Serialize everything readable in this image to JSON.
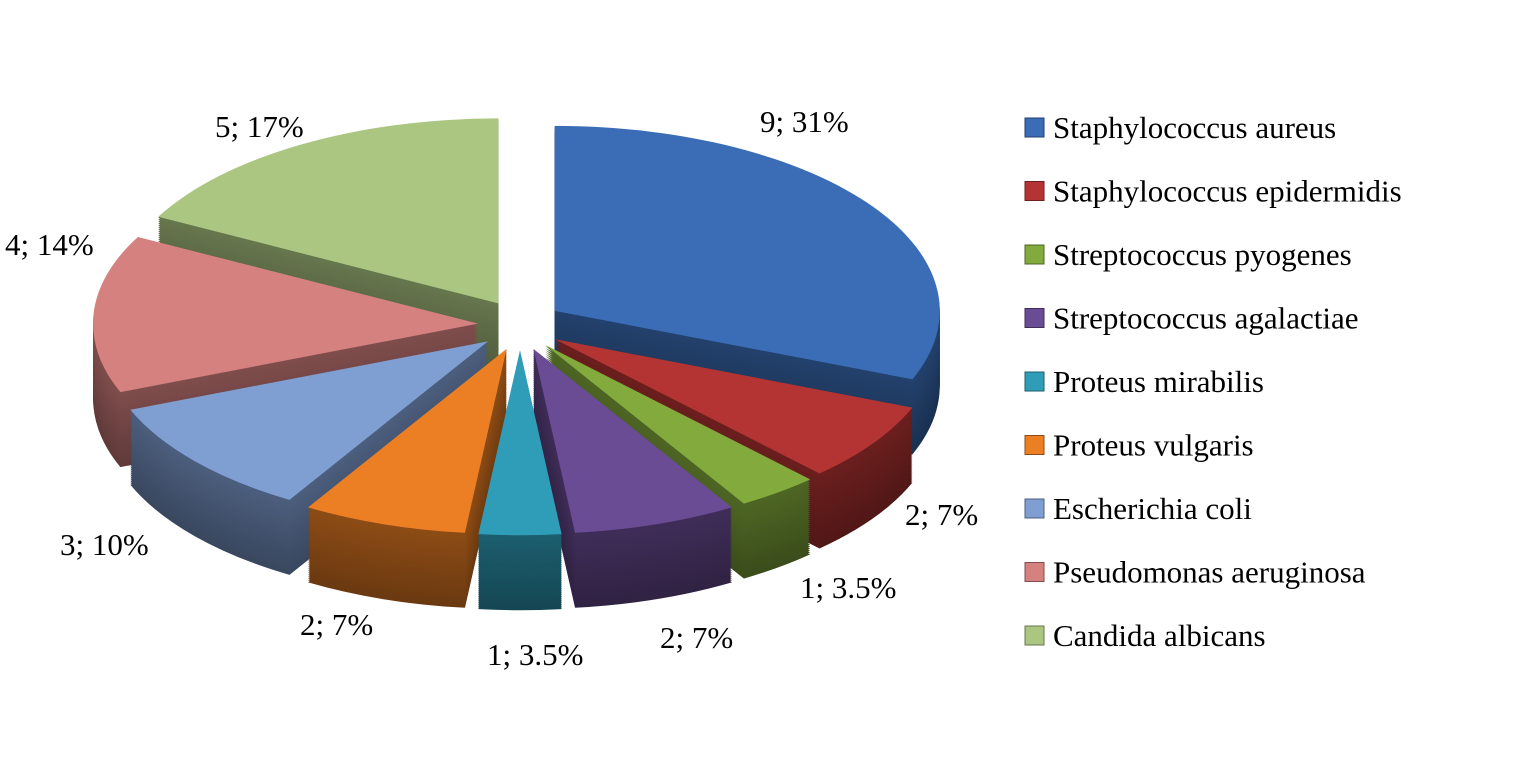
{
  "chart_data": {
    "type": "pie",
    "style": "3d-exploded",
    "title": "",
    "legend_position": "right",
    "slices": [
      {
        "name": "Staphylococcus aureus",
        "value": 9,
        "percent": "31%",
        "label": "9; 31%",
        "color": "#3A6DB5"
      },
      {
        "name": "Staphylococcus epidermidis",
        "value": 2,
        "percent": "7%",
        "label": "2; 7%",
        "color": "#B33432"
      },
      {
        "name": "Streptococcus pyogenes",
        "value": 1,
        "percent": "3.5%",
        "label": "1; 3.5%",
        "color": "#82AA3C"
      },
      {
        "name": "Streptococcus agalactiae",
        "value": 2,
        "percent": "7%",
        "label": "2; 7%",
        "color": "#6A4C94"
      },
      {
        "name": "Proteus mirabilis",
        "value": 1,
        "percent": "3.5%",
        "label": "1; 3.5%",
        "color": "#2F9DB8"
      },
      {
        "name": "Proteus vulgaris",
        "value": 2,
        "percent": "7%",
        "label": "2; 7%",
        "color": "#EC7F24"
      },
      {
        "name": "Escherichia coli",
        "value": 3,
        "percent": "10%",
        "label": "3; 10%",
        "color": "#7F9ED2"
      },
      {
        "name": "Pseudomonas aeruginosa",
        "value": 4,
        "percent": "14%",
        "label": "4; 14%",
        "color": "#D4817F"
      },
      {
        "name": "Candida albicans",
        "value": 5,
        "percent": "17%",
        "label": "5; 17%",
        "color": "#ABC681"
      }
    ]
  }
}
